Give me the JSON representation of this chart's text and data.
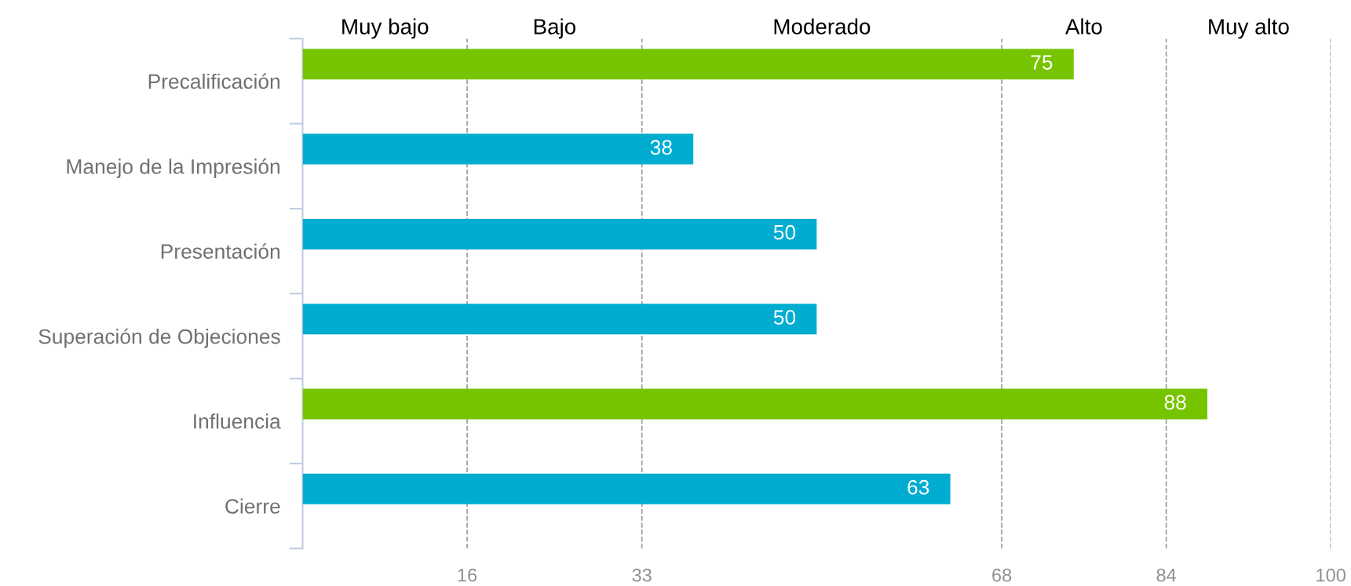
{
  "chart_data": {
    "type": "bar",
    "orientation": "horizontal",
    "categories": [
      "Precalificación",
      "Manejo de la Impresión",
      "Presentación",
      "Superación de Objeciones",
      "Influencia",
      "Cierre"
    ],
    "values": [
      75,
      38,
      50,
      50,
      88,
      63
    ],
    "colors": [
      "#76c400",
      "#00acd0",
      "#00acd0",
      "#00acd0",
      "#76c400",
      "#00acd0"
    ],
    "data_labels": true,
    "xlim": [
      0,
      100
    ],
    "xticks": [
      16,
      33,
      68,
      84,
      100
    ],
    "grid": "x",
    "annotations": [
      "Muy bajo",
      "Bajo",
      "Moderado",
      "Alto",
      "Muy alto"
    ]
  }
}
